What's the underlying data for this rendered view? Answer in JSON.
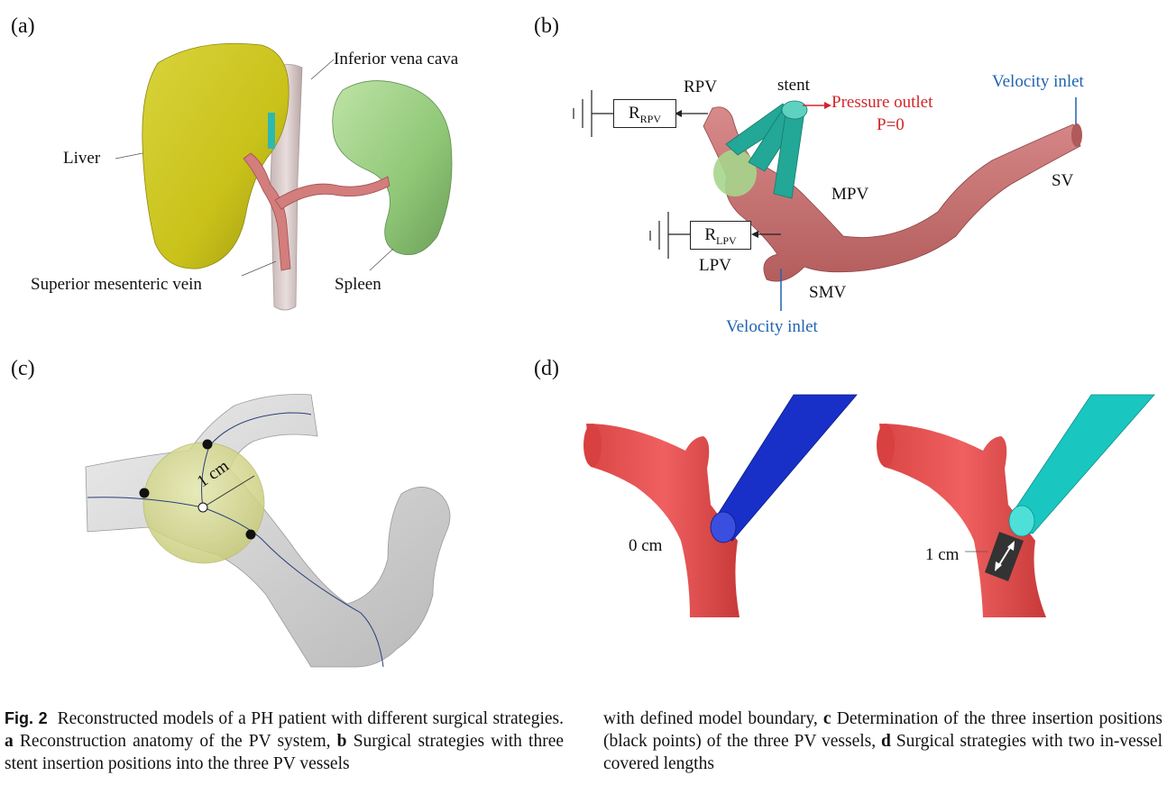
{
  "panels": {
    "a": {
      "letter": "(a)",
      "labels": {
        "ivc": "Inferior vena cava",
        "liver": "Liver",
        "smv": "Superior mesenteric vein",
        "spleen": "Spleen"
      }
    },
    "b": {
      "letter": "(b)",
      "labels": {
        "rpv": "RPV",
        "stent": "stent",
        "pressure_outlet": "Pressure outlet",
        "p_zero": "P=0",
        "velocity_inlet_top": "Velocity inlet",
        "sv": "SV",
        "mpv": "MPV",
        "lpv": "LPV",
        "smv": "SMV",
        "velocity_inlet_bottom": "Velocity inlet"
      },
      "resistors": {
        "rpv": {
          "main": "R",
          "sub": "RPV"
        },
        "lpv": {
          "main": "R",
          "sub": "LPV"
        }
      }
    },
    "c": {
      "letter": "(c)",
      "labels": {
        "radius": "1 cm"
      }
    },
    "d": {
      "letter": "(d)",
      "labels": {
        "left_length": "0 cm",
        "right_length": "1 cm"
      }
    }
  },
  "caption": {
    "fig_label": "Fig. 2",
    "part1": "Reconstructed models of a PH patient with different surgical strategies.",
    "a_key": "a",
    "a_text": "Reconstruction anatomy of the PV system,",
    "b_key": "b",
    "b_text_1": "Surgical strategies with three stent insertion positions into the three PV vessels",
    "b_text_2": "with defined model boundary,",
    "c_key": "c",
    "c_text": "Determination of the three insertion positions (black points) of the three PV vessels,",
    "d_key": "d",
    "d_text": "Surgical strategies with two in-vessel covered lengths"
  }
}
